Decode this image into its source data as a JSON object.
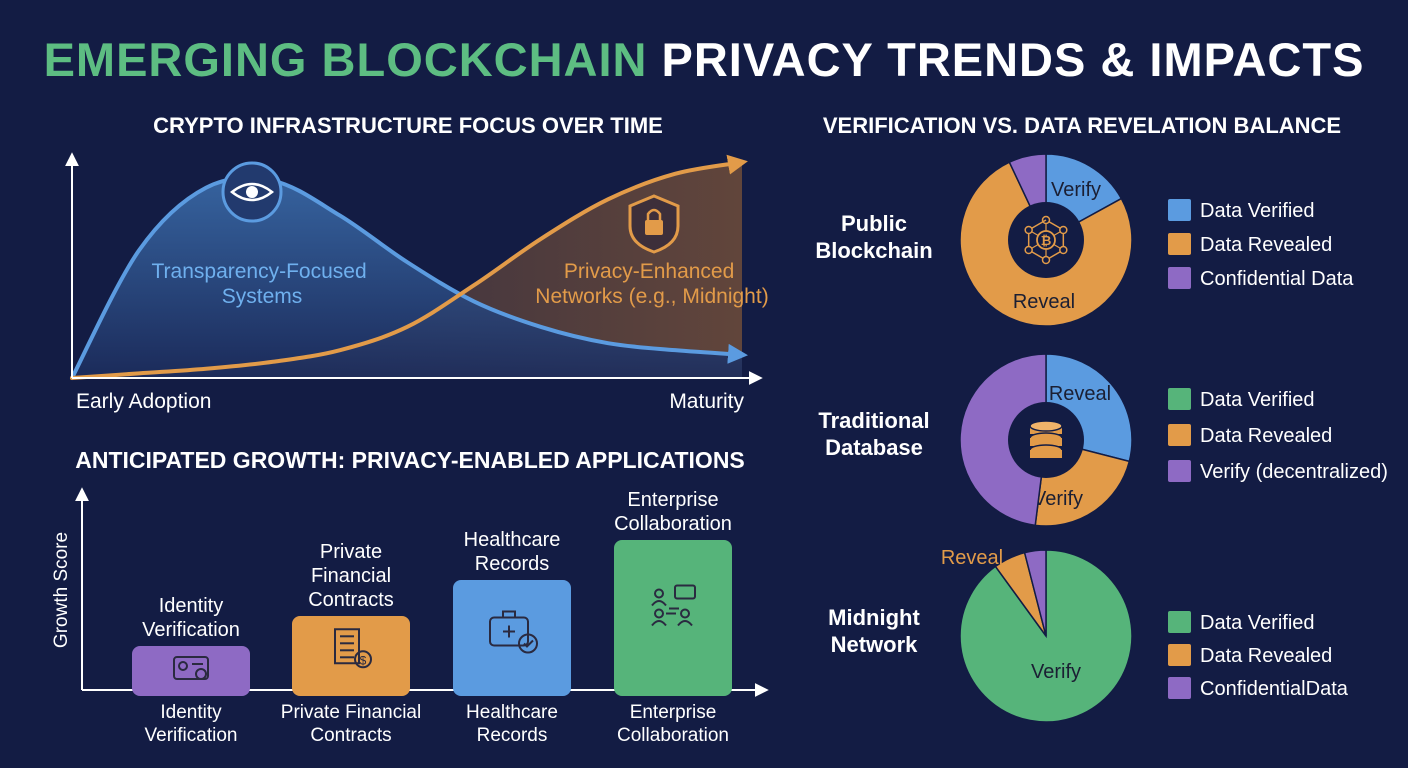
{
  "title": {
    "part1": "EMERGING BLOCKCHAIN",
    "part2": "PRIVACY TRENDS & IMPACTS"
  },
  "colors": {
    "background": "#131c44",
    "title_green": "#5dbd82",
    "blue": "#5b9be0",
    "orange": "#e29b49",
    "purple": "#8e6ac4",
    "green": "#56b47a",
    "text": "#ffffff"
  },
  "chart_data": [
    {
      "type": "area",
      "title": "CRYPTO INFRASTRUCTURE FOCUS OVER TIME",
      "x_start_label": "Early Adoption",
      "x_end_label": "Maturity",
      "series": [
        {
          "name": "Transparency-Focused Systems",
          "color": "#5b9be0",
          "icon": "eye-icon",
          "x": [
            0,
            0.1,
            0.2,
            0.3,
            0.4,
            0.5,
            0.6,
            0.7,
            0.8,
            0.9,
            1.0
          ],
          "y": [
            0.0,
            0.55,
            0.82,
            0.85,
            0.7,
            0.5,
            0.33,
            0.22,
            0.15,
            0.12,
            0.1
          ]
        },
        {
          "name": "Privacy-Enhanced Networks (e.g., Midnight)",
          "color": "#e29b49",
          "icon": "shield-lock-icon",
          "x": [
            0,
            0.1,
            0.2,
            0.3,
            0.4,
            0.5,
            0.6,
            0.7,
            0.8,
            0.9,
            1.0
          ],
          "y": [
            0.0,
            0.02,
            0.04,
            0.07,
            0.12,
            0.22,
            0.4,
            0.6,
            0.77,
            0.88,
            0.93
          ]
        }
      ]
    },
    {
      "type": "bar",
      "title": "ANTICIPATED GROWTH: PRIVACY-ENABLED APPLICATIONS",
      "ylabel": "Growth Score",
      "ylim": [
        0,
        100
      ],
      "categories": [
        "Identity Verification",
        "Private Financial Contracts",
        "Healthcare Records",
        "Enterprise Collaboration"
      ],
      "top_labels": [
        "Identity\nVerification",
        "Private\nFinancial\nContracts",
        "Healthcare\nRecords",
        "Enterprise\nCollaboration"
      ],
      "bottom_labels": [
        "Identity\nVerification",
        "Private Financial\nContracts",
        "Healthcare\nRecords",
        "Enterprise\nCollaboration"
      ],
      "values": [
        22,
        37,
        55,
        75
      ],
      "colors": [
        "#8e6ac4",
        "#e29b49",
        "#5b9be0",
        "#56b47a"
      ],
      "icons": [
        "id-card-icon",
        "contract-icon",
        "medical-case-icon",
        "collaboration-icon"
      ]
    },
    {
      "type": "pie",
      "title": "VERIFICATION VS. DATA REVELATION BALANCE",
      "charts": [
        {
          "name": "Public\nBlockchain",
          "icon": "blockchain-network-icon",
          "slices": [
            {
              "label": "Verify",
              "value": 17,
              "color": "#5b9be0"
            },
            {
              "label": "Reveal",
              "value": 76,
              "color": "#e29b49"
            },
            {
              "label": "",
              "value": 7,
              "color": "#8e6ac4"
            }
          ],
          "legend": [
            {
              "label": "Data Verified",
              "color": "#5b9be0"
            },
            {
              "label": "Data Revealed",
              "color": "#e29b49"
            },
            {
              "label": "Confidential Data",
              "color": "#8e6ac4"
            }
          ]
        },
        {
          "name": "Traditional\nDatabase",
          "icon": "database-icon",
          "slices": [
            {
              "label": "Reveal",
              "value": 29,
              "color": "#5b9be0"
            },
            {
              "label": "Verify",
              "value": 23,
              "color": "#e29b49"
            },
            {
              "label": "",
              "value": 48,
              "color": "#8e6ac4"
            }
          ],
          "legend": [
            {
              "label": "Data Verified",
              "color": "#56b47a"
            },
            {
              "label": "Data Revealed",
              "color": "#e29b49"
            },
            {
              "label": "Verify (decentralized)",
              "color": "#8e6ac4"
            }
          ]
        },
        {
          "name": "Midnight\nNetwork",
          "icon": "",
          "slices": [
            {
              "label": "Verify",
              "value": 90,
              "color": "#56b47a"
            },
            {
              "label": "Reveal",
              "value": 6,
              "color": "#e29b49"
            },
            {
              "label": "",
              "value": 4,
              "color": "#8e6ac4"
            }
          ],
          "legend": [
            {
              "label": "Data Verified",
              "color": "#56b47a"
            },
            {
              "label": "Data Revealed",
              "color": "#e29b49"
            },
            {
              "label": "ConfidentialData",
              "color": "#8e6ac4"
            }
          ]
        }
      ]
    }
  ]
}
